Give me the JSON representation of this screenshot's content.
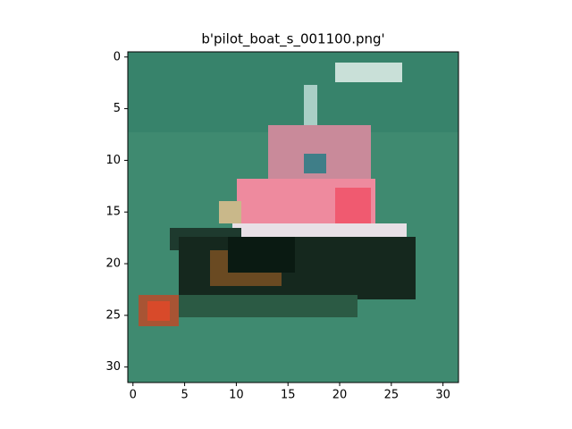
{
  "chart_data": {
    "type": "image",
    "title": "b'pilot_boat_s_001100.png'",
    "xlim": [
      -0.5,
      31.5
    ],
    "ylim": [
      31.5,
      -0.5
    ],
    "xticks": [
      0,
      5,
      10,
      15,
      20,
      25,
      30
    ],
    "yticks": [
      0,
      5,
      10,
      15,
      20,
      25,
      30
    ]
  }
}
